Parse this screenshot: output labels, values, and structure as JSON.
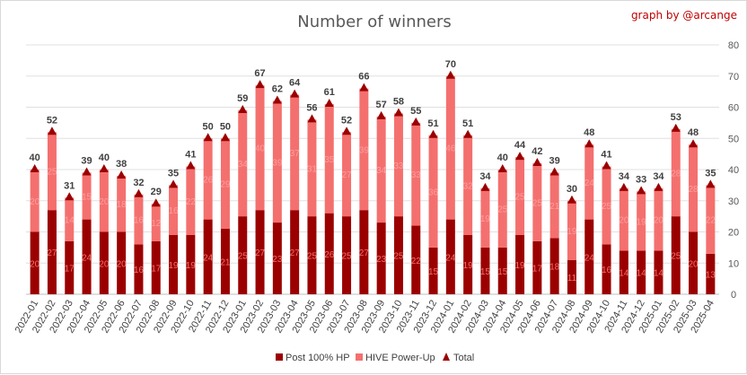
{
  "chart_data": {
    "type": "bar",
    "stacked": true,
    "title": "Number of winners",
    "credit": "graph by @arcange",
    "categories": [
      "2022-01",
      "2022-02",
      "2022-03",
      "2022-04",
      "2022-05",
      "2022-06",
      "2022-07",
      "2022-08",
      "2022-09",
      "2022-10",
      "2022-11",
      "2022-12",
      "2023-01",
      "2023-02",
      "2023-03",
      "2023-04",
      "2023-05",
      "2023-06",
      "2023-07",
      "2023-08",
      "2023-09",
      "2023-10",
      "2023-11",
      "2023-12",
      "2024-01",
      "2024-02",
      "2024-03",
      "2024-04",
      "2024-05",
      "2024-06",
      "2024-07",
      "2024-08",
      "2024-09",
      "2024-10",
      "2024-11",
      "2024-12",
      "2025-01",
      "2025-02",
      "2025-03",
      "2025-04"
    ],
    "series": [
      {
        "name": "Post 100% HP",
        "color": "#9b0000",
        "values": [
          20,
          27,
          17,
          24,
          20,
          20,
          16,
          17,
          19,
          19,
          24,
          21,
          25,
          27,
          23,
          27,
          25,
          26,
          25,
          27,
          23,
          25,
          22,
          15,
          24,
          19,
          15,
          15,
          19,
          17,
          18,
          11,
          24,
          16,
          14,
          14,
          14,
          25,
          20,
          13
        ]
      },
      {
        "name": "HIVE Power-Up",
        "color": "#f4706f",
        "values": [
          20,
          25,
          14,
          15,
          20,
          18,
          16,
          12,
          16,
          22,
          26,
          29,
          34,
          40,
          39,
          37,
          31,
          35,
          27,
          39,
          34,
          33,
          33,
          36,
          46,
          32,
          19,
          25,
          25,
          25,
          21,
          19,
          24,
          25,
          20,
          19,
          20,
          28,
          28,
          22
        ]
      },
      {
        "name": "Total",
        "color": "#9b0000",
        "marker": "triangle",
        "values": [
          40,
          52,
          31,
          39,
          40,
          38,
          32,
          29,
          35,
          41,
          50,
          50,
          59,
          67,
          62,
          64,
          56,
          61,
          52,
          66,
          57,
          58,
          55,
          51,
          70,
          51,
          34,
          40,
          44,
          42,
          39,
          30,
          48,
          41,
          34,
          33,
          34,
          53,
          48,
          35
        ]
      }
    ],
    "y_axis": {
      "position": "right",
      "min": 0,
      "max": 80,
      "step": 10,
      "ticks": [
        "0",
        "10",
        "20",
        "30",
        "40",
        "50",
        "60",
        "70",
        "80"
      ]
    },
    "grid": true,
    "legend": "bottom"
  }
}
